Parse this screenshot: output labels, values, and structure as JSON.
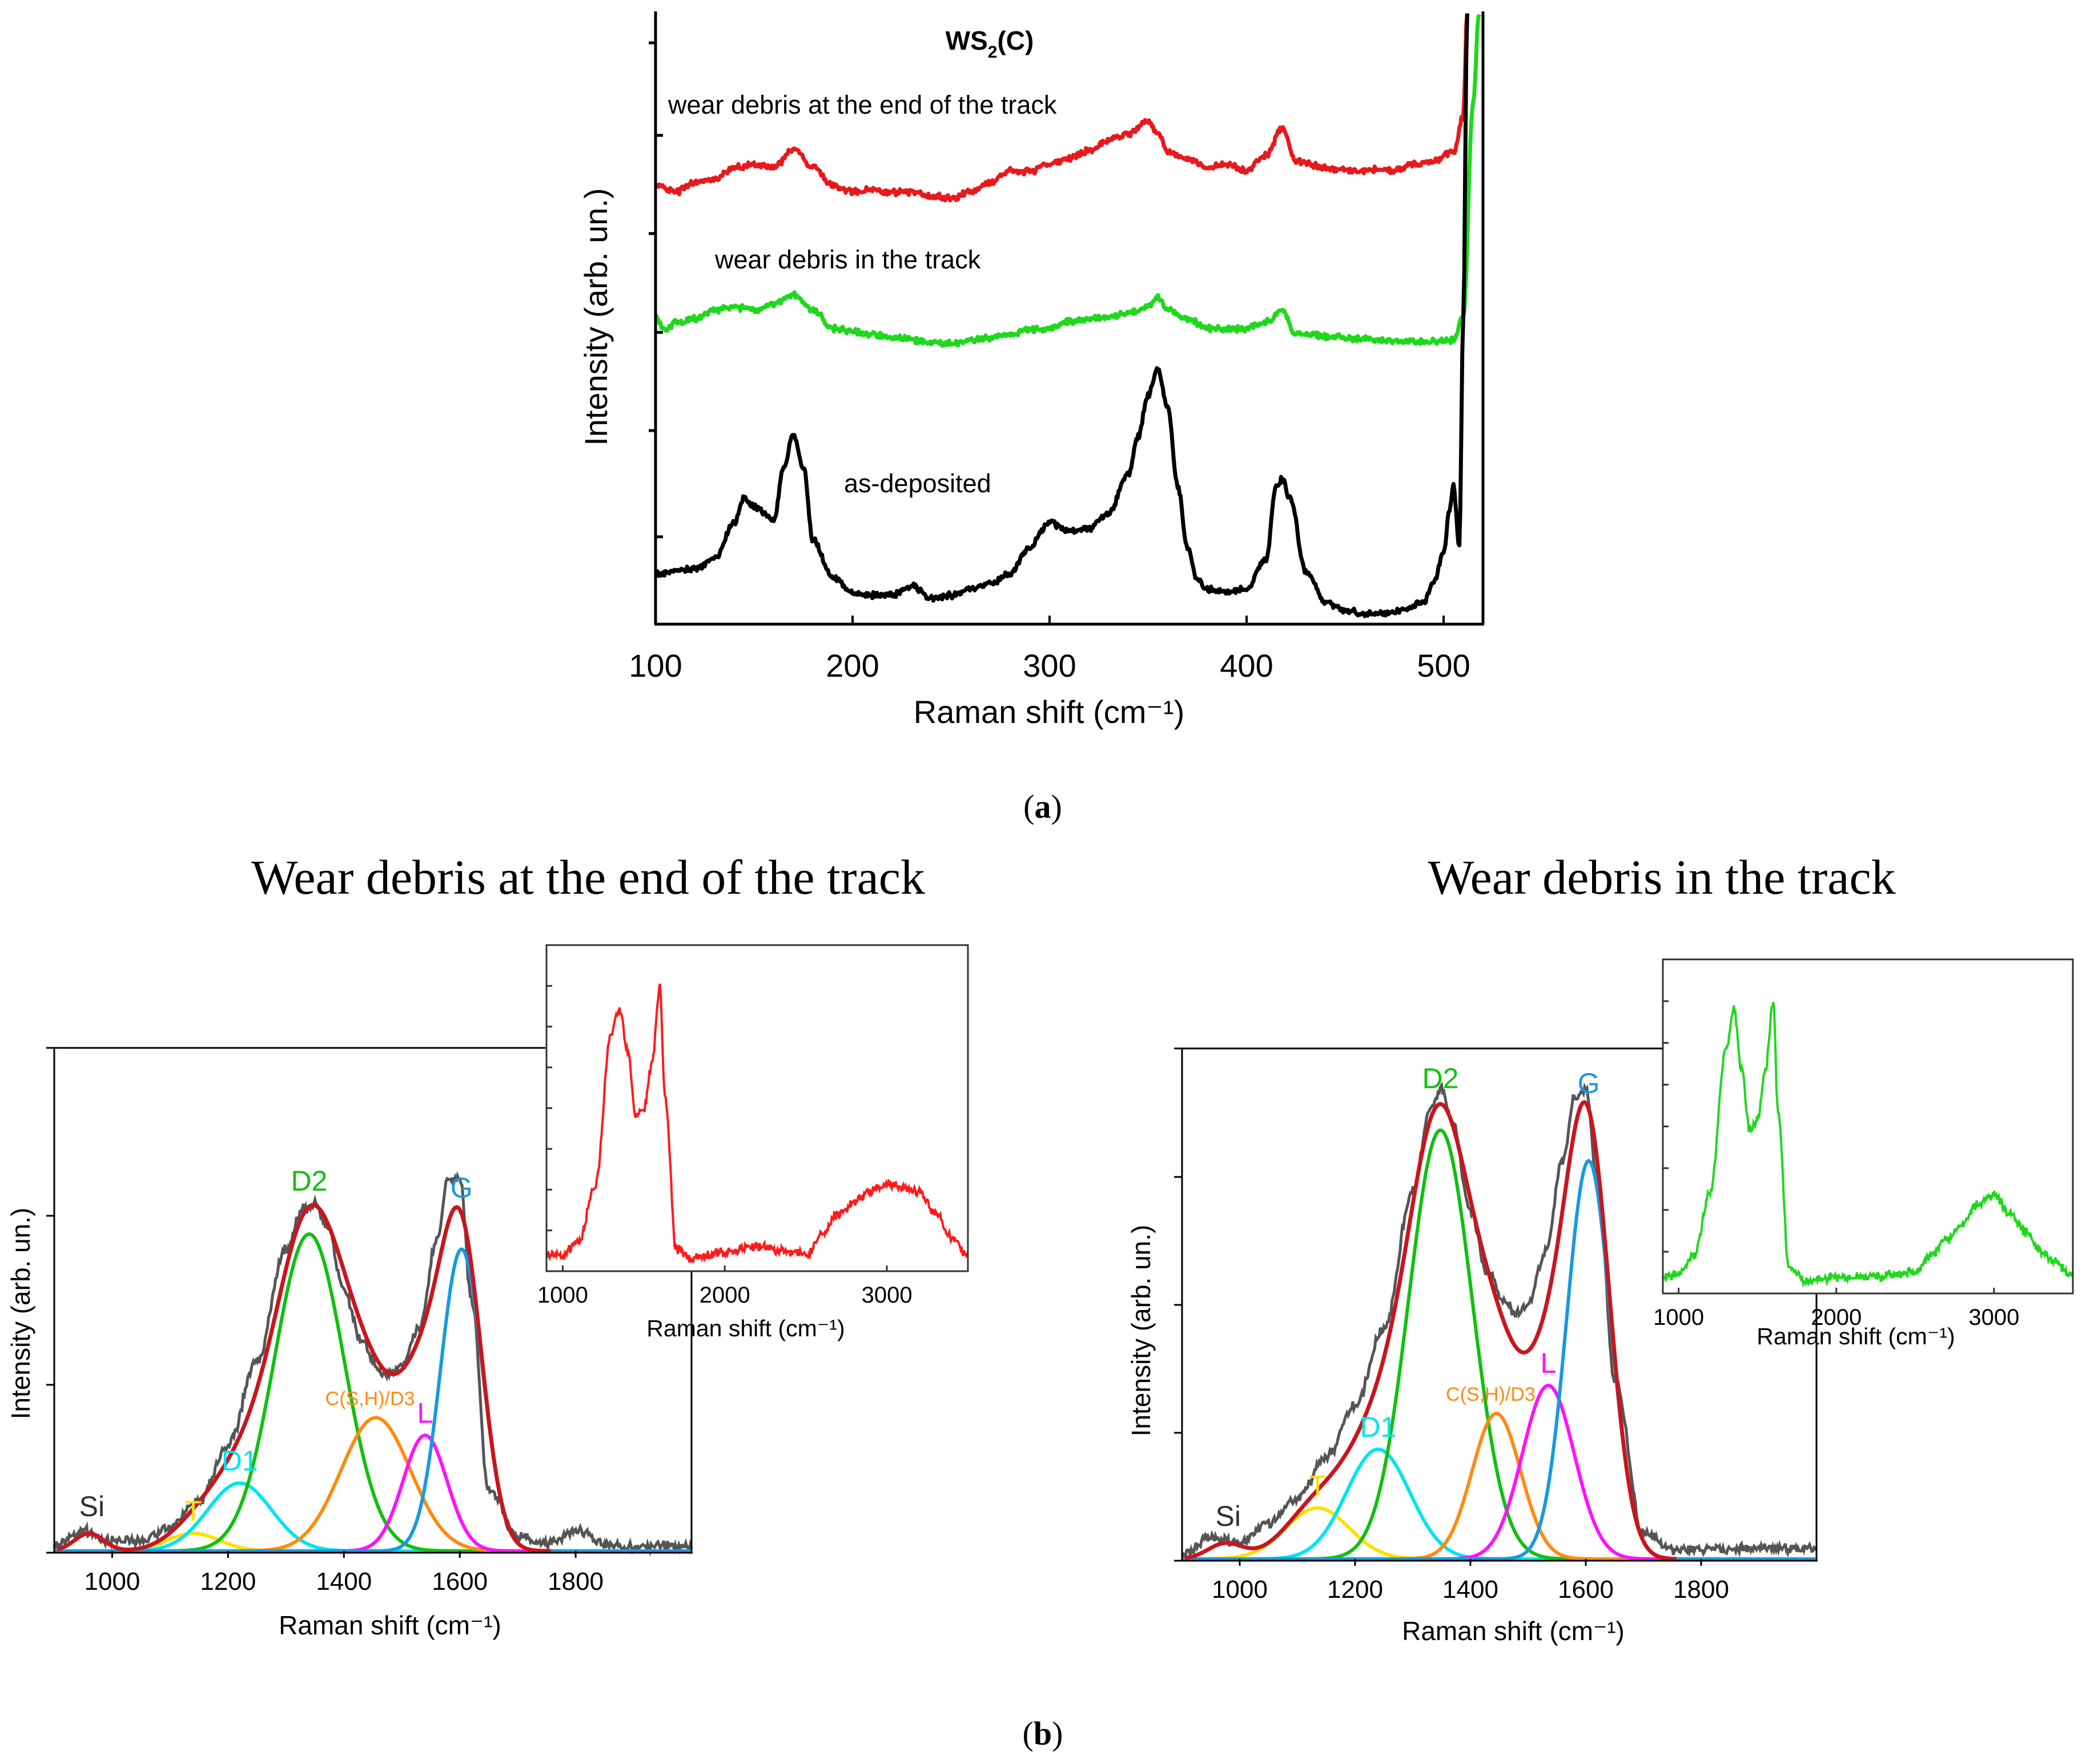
{
  "captions": {
    "a_open": "(",
    "a_letter": "a",
    "a_close": ")",
    "b_open": "(",
    "b_letter": "b",
    "b_close": ")"
  },
  "headings": {
    "left": "Wear debris at the end of the track",
    "right": "Wear debris in the track"
  },
  "chart_data": [
    {
      "id": "panel_a",
      "type": "line",
      "title": "WS₂(C)",
      "title_main": "WS",
      "title_sub": "2",
      "title_end": "(C)",
      "xlabel": "Raman shift  (cm⁻¹)",
      "ylabel": "Intensity (arb. un.)",
      "xlim": [
        100,
        520
      ],
      "ylim": [
        0,
        1
      ],
      "xticks": [
        100,
        200,
        300,
        400,
        500
      ],
      "series": [
        {
          "name": "wear debris at the end of the track",
          "color": "#e8191c",
          "x": [
            100,
            110,
            120,
            130,
            140,
            150,
            160,
            170,
            180,
            190,
            200,
            210,
            220,
            230,
            240,
            250,
            260,
            270,
            280,
            290,
            300,
            310,
            320,
            330,
            340,
            350,
            355,
            360,
            370,
            380,
            390,
            400,
            410,
            418,
            425,
            435,
            445,
            455,
            465,
            475,
            485,
            495,
            505,
            510,
            512
          ],
          "y": [
            0.715,
            0.705,
            0.72,
            0.725,
            0.745,
            0.75,
            0.745,
            0.775,
            0.745,
            0.715,
            0.705,
            0.708,
            0.704,
            0.705,
            0.698,
            0.694,
            0.705,
            0.72,
            0.74,
            0.738,
            0.75,
            0.76,
            0.772,
            0.79,
            0.8,
            0.82,
            0.8,
            0.77,
            0.76,
            0.745,
            0.75,
            0.74,
            0.765,
            0.81,
            0.755,
            0.748,
            0.742,
            0.738,
            0.742,
            0.74,
            0.75,
            0.755,
            0.77,
            0.83,
            1.0
          ]
        },
        {
          "name": "wear debris in the track",
          "color": "#1fd81c",
          "x": [
            100,
            105,
            110,
            120,
            130,
            140,
            150,
            160,
            170,
            180,
            190,
            200,
            210,
            220,
            230,
            240,
            250,
            260,
            270,
            280,
            290,
            300,
            310,
            320,
            330,
            340,
            350,
            355,
            360,
            370,
            380,
            390,
            400,
            410,
            418,
            425,
            435,
            445,
            455,
            465,
            475,
            485,
            495,
            505,
            510,
            515,
            518
          ],
          "y": [
            0.5,
            0.475,
            0.49,
            0.495,
            0.51,
            0.515,
            0.51,
            0.52,
            0.535,
            0.51,
            0.48,
            0.475,
            0.47,
            0.465,
            0.462,
            0.455,
            0.455,
            0.46,
            0.465,
            0.47,
            0.478,
            0.48,
            0.49,
            0.495,
            0.5,
            0.505,
            0.515,
            0.53,
            0.51,
            0.495,
            0.48,
            0.478,
            0.48,
            0.49,
            0.51,
            0.47,
            0.468,
            0.465,
            0.462,
            0.462,
            0.46,
            0.458,
            0.458,
            0.46,
            0.5,
            0.85,
            1.0
          ]
        },
        {
          "name": "as-deposited",
          "color": "#000000",
          "x": [
            100,
            110,
            120,
            130,
            140,
            145,
            150,
            160,
            165,
            170,
            175,
            180,
            190,
            200,
            210,
            220,
            230,
            240,
            250,
            260,
            270,
            280,
            290,
            300,
            310,
            320,
            330,
            340,
            345,
            350,
            355,
            360,
            365,
            370,
            375,
            380,
            390,
            400,
            410,
            415,
            418,
            422,
            430,
            440,
            450,
            460,
            470,
            480,
            490,
            495,
            500,
            503,
            505,
            508,
            510,
            512
          ],
          "y": [
            0.075,
            0.08,
            0.085,
            0.1,
            0.16,
            0.2,
            0.185,
            0.165,
            0.25,
            0.305,
            0.25,
            0.13,
            0.07,
            0.045,
            0.04,
            0.04,
            0.055,
            0.035,
            0.04,
            0.05,
            0.06,
            0.075,
            0.12,
            0.16,
            0.145,
            0.15,
            0.175,
            0.24,
            0.3,
            0.37,
            0.41,
            0.35,
            0.22,
            0.12,
            0.065,
            0.05,
            0.045,
            0.05,
            0.1,
            0.22,
            0.23,
            0.2,
            0.08,
            0.03,
            0.015,
            0.01,
            0.01,
            0.015,
            0.03,
            0.06,
            0.11,
            0.18,
            0.22,
            0.12,
            0.5,
            1.0
          ]
        }
      ],
      "annotations": [
        "wear debris at the end of the track",
        "wear debris in the track",
        "as-deposited"
      ]
    },
    {
      "id": "panel_b_left",
      "type": "line",
      "title": "Wear debris at the end of the track",
      "xlabel": "Raman shift  (cm⁻¹)",
      "ylabel": "Intensity (arb. un.)",
      "xlim": [
        900,
        2000
      ],
      "ylim": [
        0,
        1.0
      ],
      "xticks": [
        1000,
        1200,
        1400,
        1600,
        1800
      ],
      "measured": {
        "color": "#555555",
        "linewidth": 5,
        "x": [
          900,
          950,
          1000,
          1050,
          1100,
          1150,
          1200,
          1250,
          1300,
          1330,
          1350,
          1370,
          1400,
          1430,
          1460,
          1480,
          1500,
          1530,
          1560,
          1580,
          1600,
          1620,
          1650,
          1700,
          1750,
          1800,
          1850,
          1900,
          2000
        ],
        "y": [
          0.01,
          0.04,
          0.02,
          0.02,
          0.05,
          0.1,
          0.21,
          0.38,
          0.6,
          0.68,
          0.69,
          0.65,
          0.52,
          0.42,
          0.36,
          0.35,
          0.37,
          0.44,
          0.62,
          0.74,
          0.74,
          0.5,
          0.12,
          0.03,
          0.015,
          0.04,
          0.015,
          0.01,
          0.01
        ]
      },
      "fit_total_color": "#c8161d",
      "peaks": [
        {
          "label": "Si",
          "color": "#303030",
          "center": 960,
          "height": 0.035,
          "width": 25,
          "draw": false
        },
        {
          "label": "T",
          "color": "#ffe000",
          "center": 1140,
          "height": 0.035,
          "width": 45,
          "draw": true
        },
        {
          "label": "D1",
          "color": "#00e4f0",
          "center": 1220,
          "height": 0.135,
          "width": 55,
          "draw": true
        },
        {
          "label": "D2",
          "color": "#10c010",
          "center": 1340,
          "height": 0.63,
          "width": 60,
          "draw": true
        },
        {
          "label": "C(S,H)/D3",
          "color": "#ff8a10",
          "center": 1455,
          "height": 0.265,
          "width": 60,
          "draw": true
        },
        {
          "label": "L",
          "color": "#ff10ff",
          "center": 1540,
          "height": 0.23,
          "width": 38,
          "draw": true
        },
        {
          "label": "G",
          "color": "#1899e0",
          "center": 1603,
          "height": 0.6,
          "width": 36,
          "draw": true
        }
      ],
      "inset": {
        "xlabel": "Raman shift  (cm⁻¹)",
        "xlim": [
          900,
          3500
        ],
        "ylim": [
          0,
          1
        ],
        "xticks": [
          1000,
          2000,
          3000
        ],
        "color": "#ff1a1a",
        "x": [
          900,
          1000,
          1100,
          1200,
          1300,
          1350,
          1400,
          1450,
          1500,
          1550,
          1600,
          1630,
          1700,
          1800,
          2000,
          2200,
          2400,
          2500,
          2600,
          2700,
          2800,
          2900,
          3000,
          3100,
          3200,
          3300,
          3400,
          3500
        ],
        "y": [
          0.03,
          0.03,
          0.08,
          0.25,
          0.75,
          0.83,
          0.7,
          0.48,
          0.5,
          0.65,
          0.9,
          0.55,
          0.05,
          0.02,
          0.04,
          0.06,
          0.04,
          0.03,
          0.1,
          0.16,
          0.2,
          0.24,
          0.26,
          0.25,
          0.23,
          0.17,
          0.09,
          0.03
        ]
      }
    },
    {
      "id": "panel_b_right",
      "type": "line",
      "title": "Wear debris in the track",
      "xlabel": "Raman shift  (cm⁻¹)",
      "ylabel": "Intensity (arb. un.)",
      "xlim": [
        900,
        2000
      ],
      "ylim": [
        0,
        1.0
      ],
      "xticks": [
        1000,
        1200,
        1400,
        1600,
        1800
      ],
      "measured": {
        "color": "#555555",
        "linewidth": 5,
        "x": [
          900,
          950,
          1000,
          1050,
          1100,
          1150,
          1200,
          1250,
          1300,
          1330,
          1350,
          1370,
          1400,
          1430,
          1460,
          1480,
          1500,
          1530,
          1560,
          1580,
          1600,
          1620,
          1650,
          1700,
          1750,
          1800,
          1850,
          1900,
          2000
        ],
        "y": [
          0.01,
          0.04,
          0.03,
          0.07,
          0.12,
          0.2,
          0.3,
          0.45,
          0.72,
          0.88,
          0.92,
          0.85,
          0.68,
          0.56,
          0.5,
          0.48,
          0.5,
          0.6,
          0.78,
          0.9,
          0.92,
          0.75,
          0.35,
          0.05,
          0.02,
          0.02,
          0.02,
          0.02,
          0.02
        ]
      },
      "fit_total_color": "#c8161d",
      "peaks": [
        {
          "label": "Si",
          "color": "#303030",
          "center": 975,
          "height": 0.03,
          "width": 30,
          "draw": false
        },
        {
          "label": "T",
          "color": "#ffe000",
          "center": 1135,
          "height": 0.1,
          "width": 55,
          "draw": true
        },
        {
          "label": "D1",
          "color": "#00e4f0",
          "center": 1240,
          "height": 0.215,
          "width": 55,
          "draw": true
        },
        {
          "label": "D2",
          "color": "#10c010",
          "center": 1348,
          "height": 0.84,
          "width": 55,
          "draw": true
        },
        {
          "label": "C(S,H)/D3",
          "color": "#ff8a10",
          "center": 1445,
          "height": 0.285,
          "width": 42,
          "draw": true
        },
        {
          "label": "L",
          "color": "#ff10ff",
          "center": 1535,
          "height": 0.34,
          "width": 45,
          "draw": true
        },
        {
          "label": "G",
          "color": "#1899e0",
          "center": 1605,
          "height": 0.78,
          "width": 38,
          "draw": true
        }
      ],
      "inset": {
        "xlabel": "Raman shift  (cm⁻¹)",
        "xlim": [
          900,
          3500
        ],
        "ylim": [
          0,
          1
        ],
        "xticks": [
          1000,
          2000,
          3000
        ],
        "color": "#1fd81c",
        "x": [
          900,
          1000,
          1100,
          1200,
          1300,
          1350,
          1400,
          1450,
          1500,
          1550,
          1600,
          1630,
          1700,
          1800,
          2000,
          2200,
          2400,
          2500,
          2600,
          2700,
          2800,
          2900,
          3000,
          3100,
          3200,
          3300,
          3400,
          3500
        ],
        "y": [
          0.03,
          0.04,
          0.1,
          0.3,
          0.75,
          0.88,
          0.68,
          0.5,
          0.52,
          0.68,
          0.9,
          0.55,
          0.06,
          0.02,
          0.03,
          0.03,
          0.04,
          0.05,
          0.1,
          0.15,
          0.2,
          0.26,
          0.29,
          0.23,
          0.17,
          0.11,
          0.07,
          0.03
        ]
      }
    }
  ]
}
